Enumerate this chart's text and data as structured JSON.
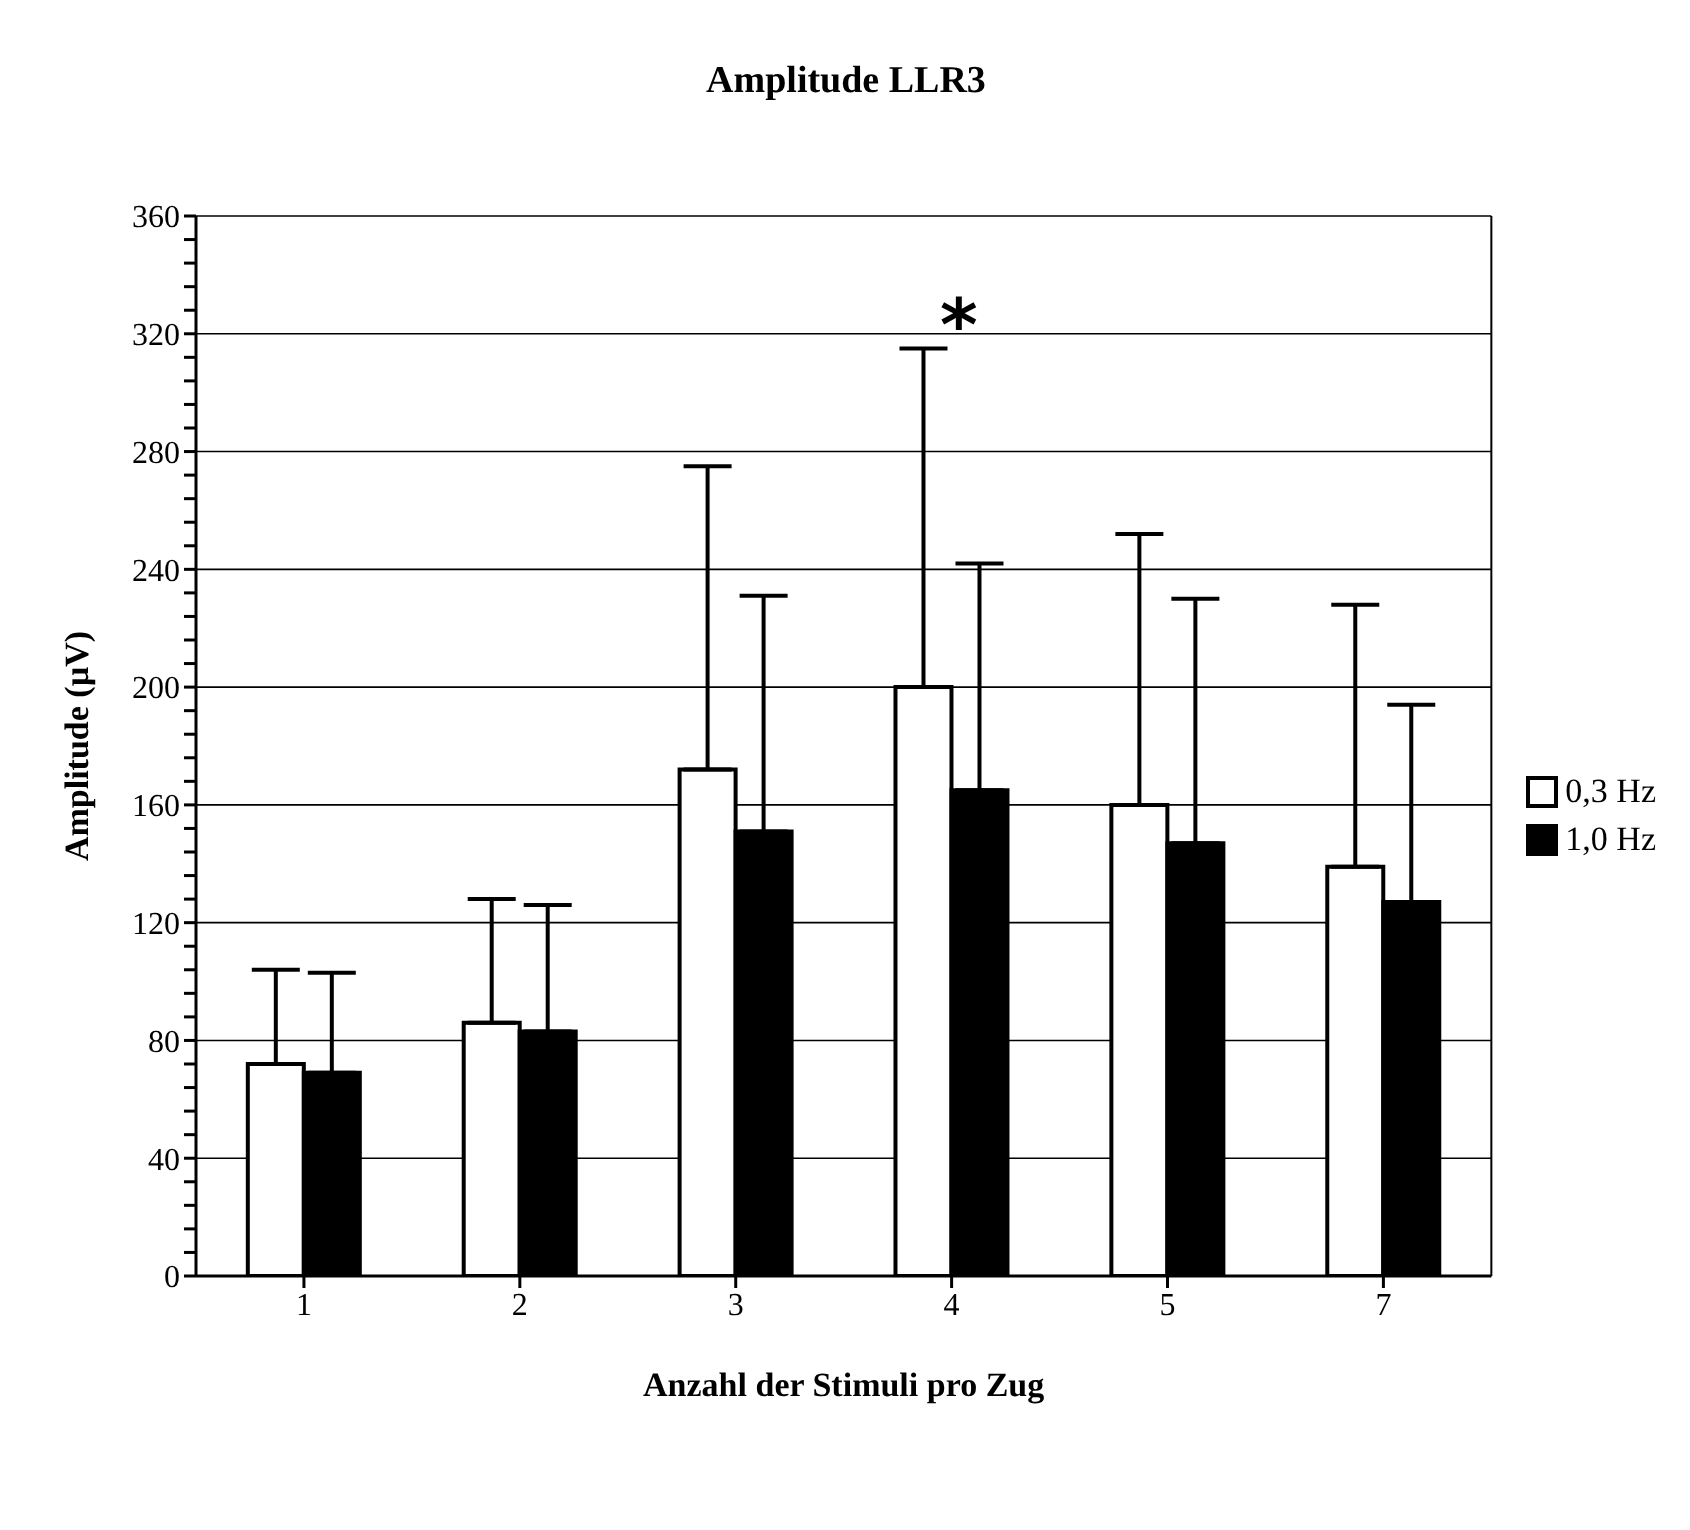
{
  "chart_data": {
    "type": "bar",
    "title": "Amplitude LLR3",
    "xlabel": "Anzahl der Stimuli pro Zug",
    "ylabel": "Amplitude (µV)",
    "categories": [
      "1",
      "2",
      "3",
      "4",
      "5",
      "7"
    ],
    "series": [
      {
        "name": "0,3 Hz",
        "color": "#ffffff",
        "values": [
          72,
          86,
          172,
          200,
          160,
          139
        ],
        "errors": [
          [
            72,
            104
          ],
          [
            86,
            128
          ],
          [
            172,
            275
          ],
          [
            200,
            315
          ],
          [
            160,
            252
          ],
          [
            139,
            228
          ]
        ]
      },
      {
        "name": "1,0 Hz",
        "color": "#000000",
        "values": [
          69,
          83,
          151,
          165,
          147,
          127
        ],
        "errors": [
          [
            69,
            103
          ],
          [
            83,
            126
          ],
          [
            151,
            231
          ],
          [
            165,
            242
          ],
          [
            147,
            230
          ],
          [
            127,
            194
          ]
        ]
      }
    ],
    "ylim": [
      0,
      360
    ],
    "yticks": [
      0,
      {
        "value": 8,
        "label": null
      },
      {
        "value": 16,
        "label": null
      },
      {
        "value": 24,
        "label": null
      },
      {
        "value": 32,
        "label": null
      },
      40,
      {
        "value": 48,
        "label": null
      },
      {
        "value": 56,
        "label": null
      },
      {
        "value": 64,
        "label": null
      },
      {
        "value": 72,
        "label": null
      },
      80,
      {
        "value": 88,
        "label": null
      },
      {
        "value": 96,
        "label": null
      },
      {
        "value": 104,
        "label": null
      },
      {
        "value": 112,
        "label": null
      },
      120,
      {
        "value": 128,
        "label": null
      },
      {
        "value": 136,
        "label": null
      },
      {
        "value": 144,
        "label": null
      },
      {
        "value": 152,
        "label": null
      },
      160,
      {
        "value": 168,
        "label": null
      },
      {
        "value": 176,
        "label": null
      },
      {
        "value": 184,
        "label": null
      },
      {
        "value": 192,
        "label": null
      },
      200,
      {
        "value": 208,
        "label": null
      },
      {
        "value": 216,
        "label": null
      },
      {
        "value": 224,
        "label": null
      },
      {
        "value": 232,
        "label": null
      },
      240,
      {
        "value": 248,
        "label": null
      },
      {
        "value": 256,
        "label": null
      },
      {
        "value": 264,
        "label": null
      },
      {
        "value": 272,
        "label": null
      },
      280,
      {
        "value": 288,
        "label": null
      },
      {
        "value": 296,
        "label": null
      },
      {
        "value": 304,
        "label": null
      },
      {
        "value": 312,
        "label": null
      },
      320,
      {
        "value": 328,
        "label": null
      },
      {
        "value": 336,
        "label": null
      },
      {
        "value": 344,
        "label": null
      },
      {
        "value": 352,
        "label": null
      },
      360
    ],
    "grid": "y",
    "legend": "right",
    "annotations": [
      "*"
    ]
  }
}
